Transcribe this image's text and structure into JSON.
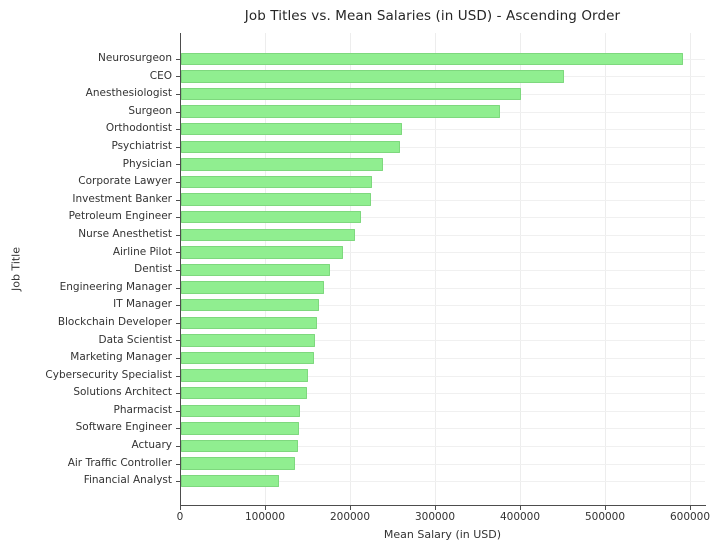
{
  "chart_data": {
    "type": "bar",
    "orientation": "horizontal",
    "title": "Job Titles vs. Mean Salaries (in USD) - Ascending Order",
    "xlabel": "Mean Salary (in USD)",
    "ylabel": "Job Title",
    "categories": [
      "Neurosurgeon",
      "CEO",
      "Anesthesiologist",
      "Surgeon",
      "Orthodontist",
      "Psychiatrist",
      "Physician",
      "Corporate Lawyer",
      "Investment Banker",
      "Petroleum Engineer",
      "Nurse Anesthetist",
      "Airline Pilot",
      "Dentist",
      "Engineering Manager",
      "IT Manager",
      "Blockchain Developer",
      "Data Scientist",
      "Marketing Manager",
      "Cybersecurity Specialist",
      "Solutions Architect",
      "Pharmacist",
      "Software Engineer",
      "Actuary",
      "Air Traffic Controller",
      "Financial Analyst"
    ],
    "values": [
      590000,
      450000,
      400000,
      375000,
      260000,
      258000,
      238000,
      225000,
      224000,
      212000,
      205000,
      190000,
      175000,
      168000,
      162000,
      160000,
      158000,
      156000,
      149000,
      148000,
      140000,
      139000,
      138000,
      134000,
      115000
    ],
    "sort_order": "ascending (longest bar at top)",
    "xlim": [
      0,
      617600
    ],
    "x_ticks": [
      0,
      100000,
      200000,
      300000,
      400000,
      500000,
      600000
    ],
    "x_tick_labels": [
      "0",
      "100000",
      "200000",
      "300000",
      "400000",
      "500000",
      "600000"
    ],
    "grid": true,
    "legend": "none",
    "bar_color": "#90EE90",
    "bar_edge_color": "#7ed87e",
    "axis_color": "#4d4d4d",
    "background_color": "#ffffff"
  }
}
